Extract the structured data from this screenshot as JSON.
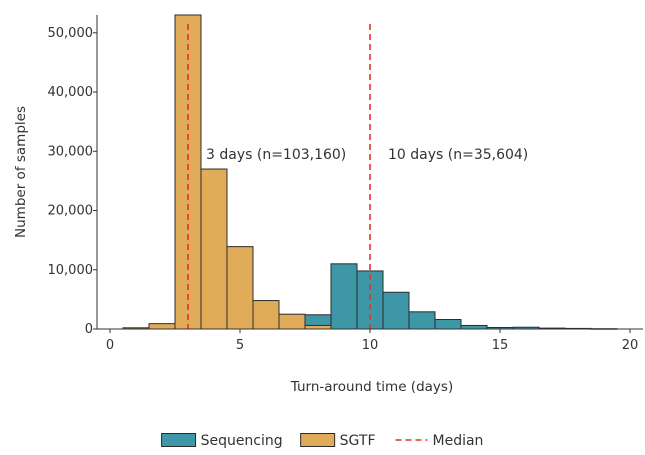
{
  "chart_data": {
    "type": "bar",
    "title": "",
    "xlabel": "Turn-around time (days)",
    "ylabel": "Number of samples",
    "xlim": [
      -0.5,
      20.5
    ],
    "ylim": [
      0,
      53000
    ],
    "x_ticks": [
      0,
      5,
      10,
      15,
      20
    ],
    "x_tick_labels": [
      "0",
      "5",
      "10",
      "15",
      "20"
    ],
    "y_ticks": [
      0,
      10000,
      20000,
      30000,
      40000,
      50000
    ],
    "y_tick_labels": [
      "0",
      "10,000",
      "20,000",
      "30,000",
      "40,000",
      "50,000"
    ],
    "bin_width": 1,
    "series": [
      {
        "name": "Sequencing",
        "color": "#3d97a6",
        "bins": [
          {
            "x": 8,
            "value": 2400
          },
          {
            "x": 9,
            "value": 11000
          },
          {
            "x": 10,
            "value": 9800
          },
          {
            "x": 11,
            "value": 6200
          },
          {
            "x": 12,
            "value": 2900
          },
          {
            "x": 13,
            "value": 1600
          },
          {
            "x": 14,
            "value": 600
          },
          {
            "x": 15,
            "value": 250
          },
          {
            "x": 16,
            "value": 300
          },
          {
            "x": 17,
            "value": 150
          },
          {
            "x": 18,
            "value": 100
          },
          {
            "x": 19,
            "value": 50
          }
        ]
      },
      {
        "name": "SGTF",
        "color": "#e0ac59",
        "bins": [
          {
            "x": 1,
            "value": 200
          },
          {
            "x": 2,
            "value": 900
          },
          {
            "x": 3,
            "value": 53000
          },
          {
            "x": 4,
            "value": 27000
          },
          {
            "x": 5,
            "value": 13900
          },
          {
            "x": 6,
            "value": 4800
          },
          {
            "x": 7,
            "value": 2500
          },
          {
            "x": 8,
            "value": 600
          }
        ]
      }
    ],
    "medians": [
      {
        "series": "SGTF",
        "x": 3,
        "label": "3 days (n=103,160)"
      },
      {
        "series": "Sequencing",
        "x": 10,
        "label": "10 days (n=35,604)"
      }
    ],
    "median_color": "#e8322a",
    "legend": {
      "placement": "bottom",
      "items": [
        {
          "label": "Sequencing",
          "kind": "box",
          "color": "#3d97a6"
        },
        {
          "label": "SGTF",
          "kind": "box",
          "color": "#e0ac59"
        },
        {
          "label": "Median",
          "kind": "dash",
          "color": "#e8322a"
        }
      ]
    },
    "grid": false
  }
}
